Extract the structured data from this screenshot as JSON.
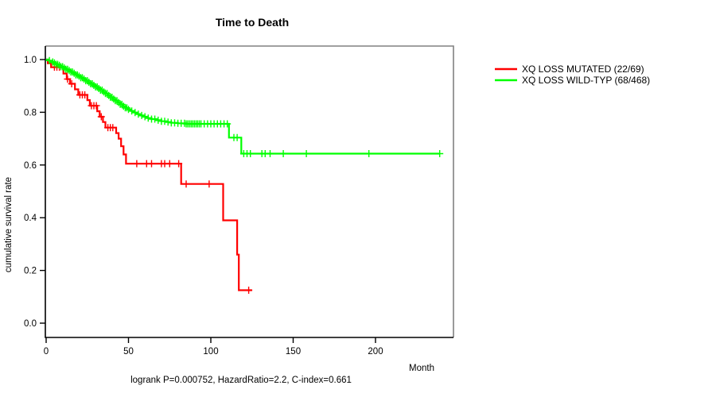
{
  "title": "Time to Death",
  "footer": "logrank P=0.000752, HazardRatio=2.2, C-index=0.661",
  "y_axis": {
    "label": "cumulative survival rate",
    "tick_labels": [
      "1.0",
      "0.8",
      "0.6",
      "0.4",
      "0.2",
      "0.0"
    ],
    "tick_values": [
      1.0,
      0.8,
      0.6,
      0.4,
      0.2,
      0.0
    ]
  },
  "x_axis": {
    "label": "Month",
    "tick_labels": [
      "0",
      "50",
      "100",
      "150",
      "200"
    ],
    "tick_values": [
      0,
      50,
      100,
      150,
      200
    ]
  },
  "legend": {
    "items": [
      {
        "label": "XQ LOSS MUTATED (22/69)",
        "color": "#ff0000"
      },
      {
        "label": "XQ LOSS WILD-TYP (68/468)",
        "color": "#00ff00"
      }
    ]
  },
  "colors": {
    "mutated": "#ff0000",
    "wildtype": "#00ff00",
    "frame_gray": "#808080",
    "axis_black": "#000000"
  },
  "chart_data": {
    "type": "line",
    "subtype": "kaplan-meier-step",
    "title": "Time to Death",
    "xlabel": "Month",
    "ylabel": "cumulative survival rate",
    "xlim": [
      0,
      247
    ],
    "ylim": [
      0.0,
      1.0
    ],
    "grid": false,
    "legend_position": "right",
    "stats": {
      "logrank_P": "0.000752",
      "HazardRatio": "2.2",
      "C_index": "0.661"
    },
    "series": [
      {
        "name": "XQ LOSS MUTATED (22/69)",
        "color": "#ff0000",
        "n_events": 22,
        "n_total": 69,
        "steps": [
          [
            0,
            1.0
          ],
          [
            1,
            0.986
          ],
          [
            3,
            0.971
          ],
          [
            10.5,
            0.947
          ],
          [
            12.5,
            0.926
          ],
          [
            14.5,
            0.908
          ],
          [
            17.5,
            0.887
          ],
          [
            19.5,
            0.866
          ],
          [
            25,
            0.846
          ],
          [
            26.5,
            0.825
          ],
          [
            31,
            0.804
          ],
          [
            32.5,
            0.783
          ],
          [
            34.5,
            0.763
          ],
          [
            36,
            0.742
          ],
          [
            42.5,
            0.721
          ],
          [
            44,
            0.7
          ],
          [
            45.5,
            0.671
          ],
          [
            47,
            0.64
          ],
          [
            48.5,
            0.605
          ],
          [
            82,
            0.528
          ],
          [
            107.5,
            0.39
          ],
          [
            116,
            0.26
          ],
          [
            117,
            0.125
          ]
        ],
        "censor_months": [
          5,
          6.5,
          8,
          13,
          15.5,
          20.5,
          22,
          23.5,
          27.5,
          29,
          30.5,
          33.5,
          37.5,
          39,
          40.5,
          55,
          61,
          64,
          70,
          72,
          75,
          80.5,
          85,
          99,
          123
        ],
        "end_month": 125
      },
      {
        "name": "XQ LOSS WILD-TYP (68/468)",
        "color": "#00ff00",
        "n_events": 68,
        "n_total": 468,
        "steps": [
          [
            0,
            1.0
          ],
          [
            1.5,
            0.996
          ],
          [
            3,
            0.991
          ],
          [
            4.5,
            0.987
          ],
          [
            6,
            0.982
          ],
          [
            7.5,
            0.978
          ],
          [
            9,
            0.973
          ],
          [
            10.5,
            0.968
          ],
          [
            12,
            0.963
          ],
          [
            13.5,
            0.958
          ],
          [
            15,
            0.953
          ],
          [
            16.5,
            0.948
          ],
          [
            18,
            0.942
          ],
          [
            19.5,
            0.937
          ],
          [
            21,
            0.931
          ],
          [
            22.5,
            0.926
          ],
          [
            24,
            0.92
          ],
          [
            25.5,
            0.914
          ],
          [
            27,
            0.908
          ],
          [
            28.5,
            0.902
          ],
          [
            30,
            0.896
          ],
          [
            31.5,
            0.89
          ],
          [
            33,
            0.884
          ],
          [
            34.5,
            0.877
          ],
          [
            36,
            0.871
          ],
          [
            37.5,
            0.864
          ],
          [
            39,
            0.857
          ],
          [
            40.5,
            0.85
          ],
          [
            42,
            0.844
          ],
          [
            43.5,
            0.837
          ],
          [
            45,
            0.83
          ],
          [
            46.5,
            0.823
          ],
          [
            48,
            0.817
          ],
          [
            49.5,
            0.811
          ],
          [
            51,
            0.805
          ],
          [
            53,
            0.799
          ],
          [
            55,
            0.793
          ],
          [
            57,
            0.788
          ],
          [
            59,
            0.783
          ],
          [
            61,
            0.778
          ],
          [
            64,
            0.774
          ],
          [
            67,
            0.77
          ],
          [
            70,
            0.766
          ],
          [
            73,
            0.763
          ],
          [
            76,
            0.76
          ],
          [
            80,
            0.758
          ],
          [
            85,
            0.756
          ],
          [
            111,
            0.704
          ],
          [
            118.5,
            0.643
          ]
        ],
        "censor_months": [
          2,
          4,
          5,
          6,
          7,
          8,
          9,
          10,
          11,
          12,
          13,
          14,
          15,
          16,
          17,
          18,
          19,
          20,
          21,
          22,
          23,
          24,
          25,
          26,
          27,
          28,
          29,
          30,
          31,
          32,
          33,
          34,
          35,
          36,
          37,
          38,
          39,
          40,
          41,
          42,
          43,
          44,
          45,
          46,
          47,
          48,
          49,
          50,
          52,
          54,
          56,
          58,
          60,
          62,
          64,
          66,
          68,
          70,
          72,
          74,
          76,
          78,
          80,
          82,
          84,
          85,
          86,
          87,
          88,
          89,
          90,
          91,
          92,
          93,
          94,
          96,
          98,
          100,
          102,
          104,
          106,
          108,
          110,
          114,
          116,
          120,
          122,
          124,
          131,
          133,
          136,
          144,
          158,
          196,
          239
        ],
        "end_month": 239
      }
    ]
  }
}
